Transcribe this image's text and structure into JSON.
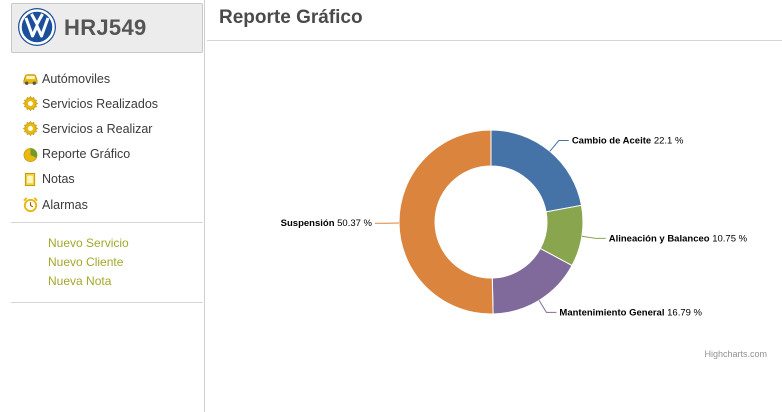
{
  "header": {
    "plate": "HRJ549",
    "logo": "vw-logo"
  },
  "nav": {
    "items": [
      {
        "label": "Autómoviles",
        "icon": "car-icon"
      },
      {
        "label": "Servicios Realizados",
        "icon": "gear-icon"
      },
      {
        "label": "Servicios a Realizar",
        "icon": "gear-icon"
      },
      {
        "label": "Reporte Gráfico",
        "icon": "pie-chart-icon"
      },
      {
        "label": "Notas",
        "icon": "note-icon"
      },
      {
        "label": "Alarmas",
        "icon": "alarm-clock-icon"
      }
    ]
  },
  "actions": [
    "Nuevo Servicio",
    "Nuevo Cliente",
    "Nueva Nota"
  ],
  "page": {
    "title": "Reporte Gráfico"
  },
  "colors": {
    "accent_link": "#a3a829",
    "icon_yellow": "#e8b90f"
  },
  "chart_data": {
    "type": "pie",
    "variant": "donut",
    "credits": "Highcharts.com",
    "series": [
      {
        "name": "Cambio de Aceite",
        "value": 22.1,
        "label_value": "22.1 %",
        "color": "#4572a7"
      },
      {
        "name": "Alineación y Balanceo",
        "value": 10.75,
        "label_value": "10.75 %",
        "color": "#89a54e"
      },
      {
        "name": "Mantenimiento General",
        "value": 16.79,
        "label_value": "16.79 %",
        "color": "#80699b"
      },
      {
        "name": "Suspensión",
        "value": 50.37,
        "label_value": "50.37 %",
        "color": "#db843d"
      }
    ]
  }
}
